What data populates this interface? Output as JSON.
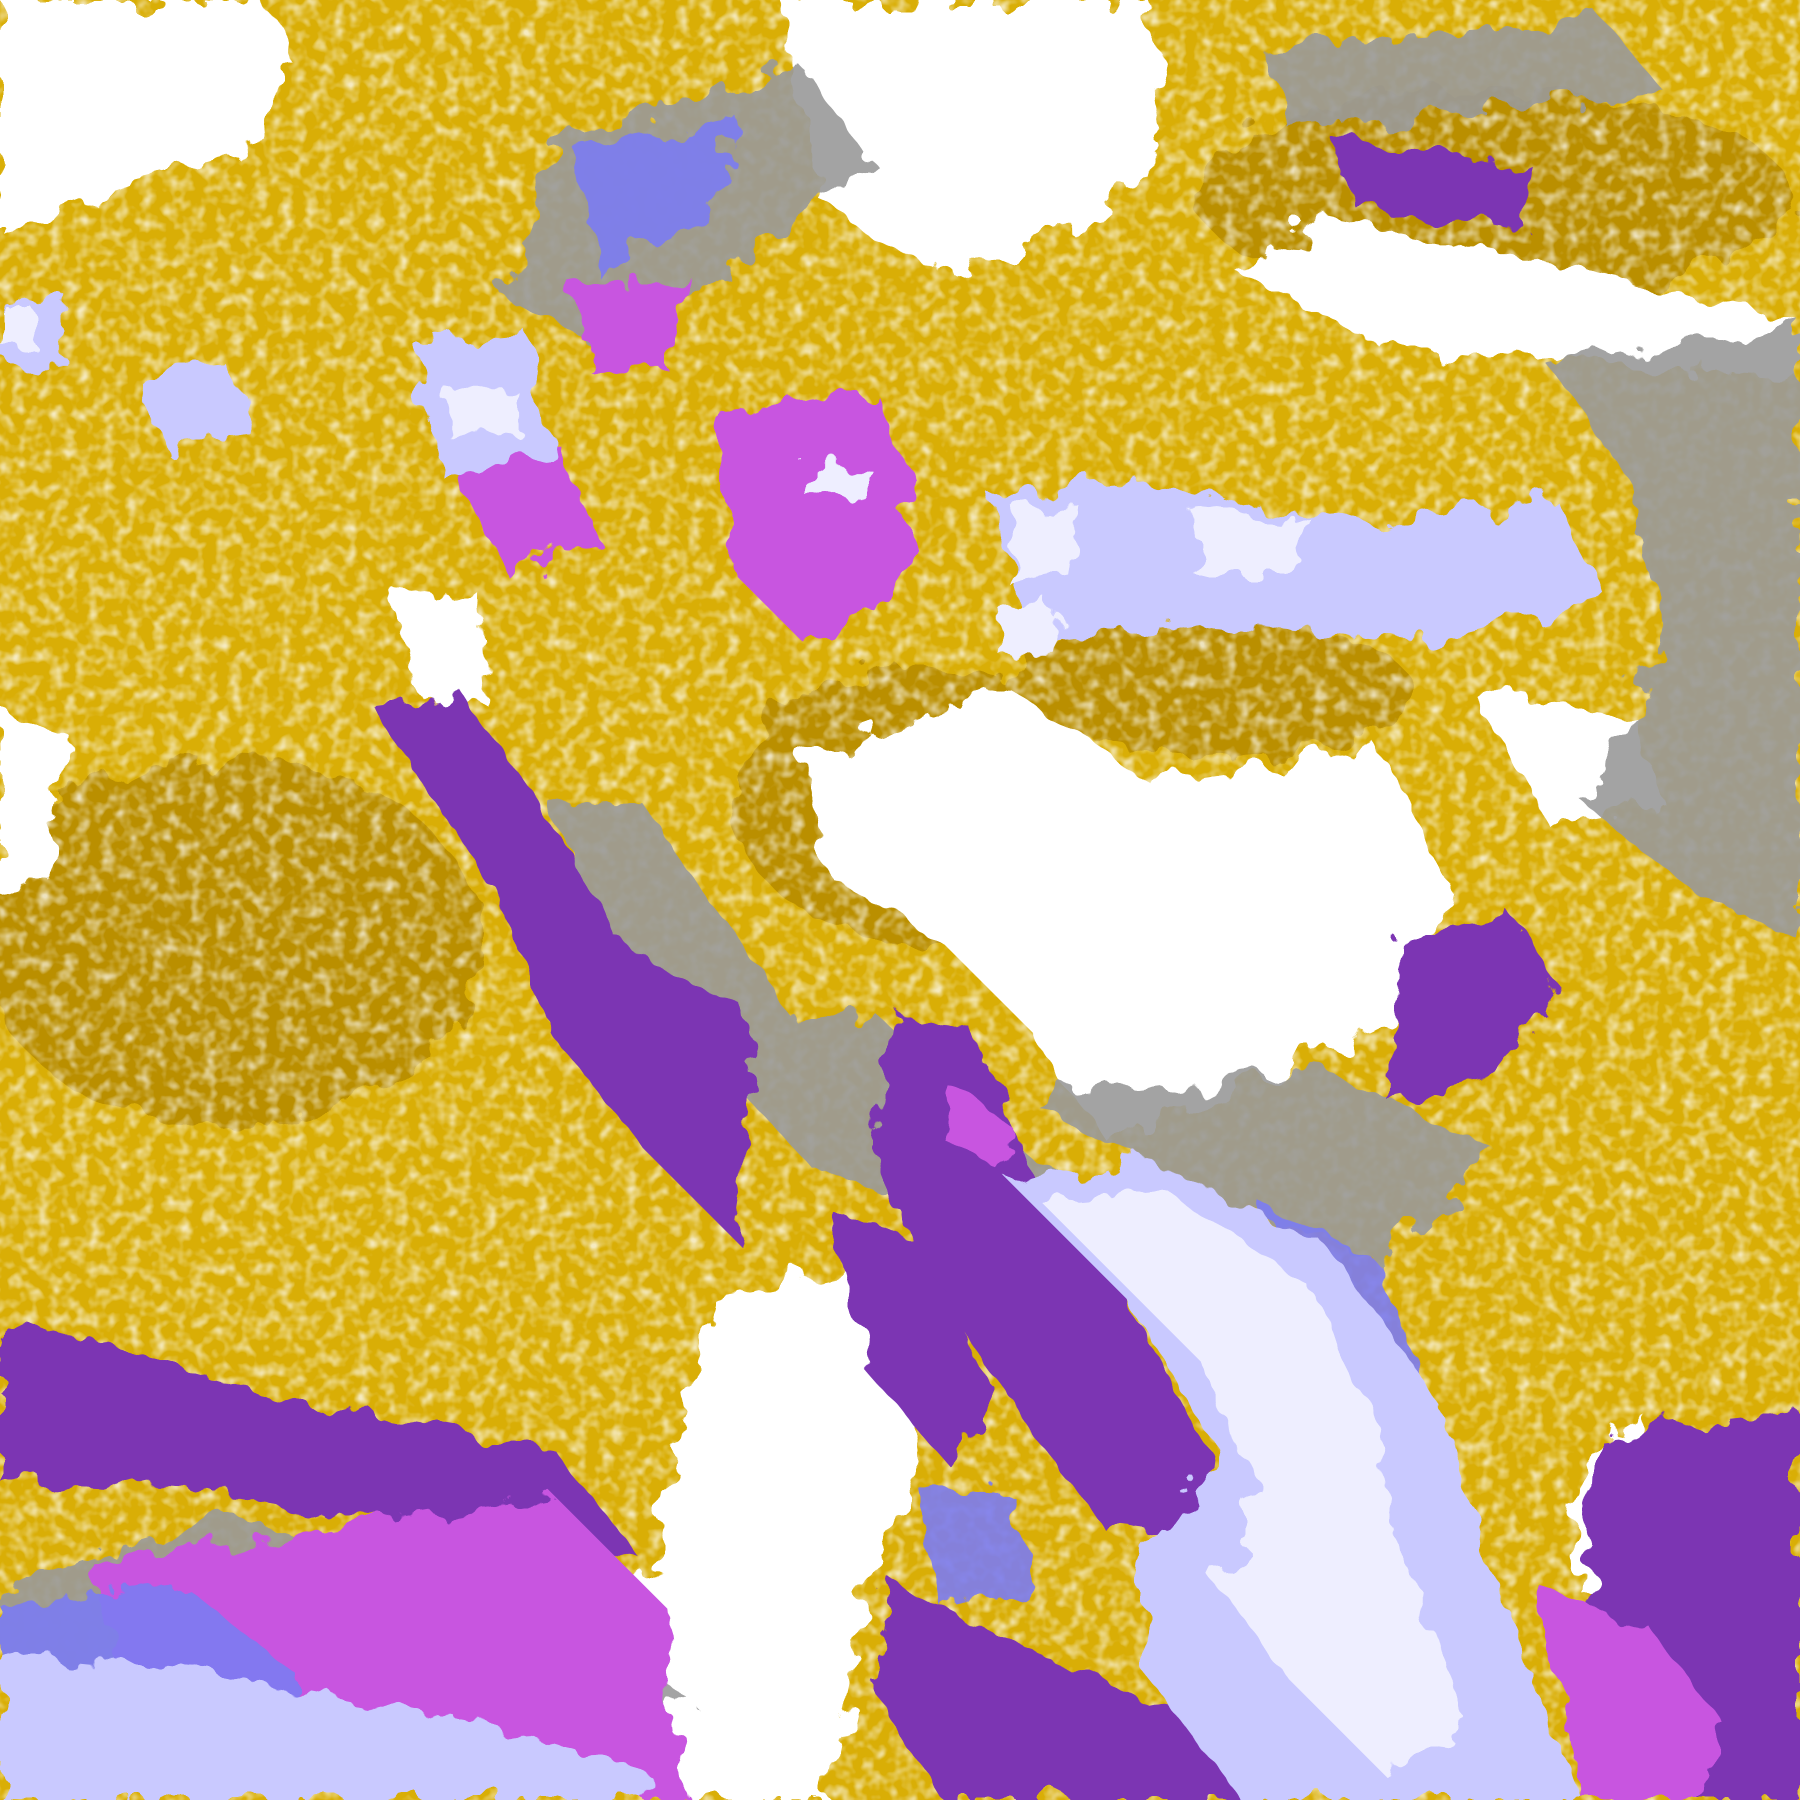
{
  "image": {
    "kind": "false-color classified satellite cloud imagery",
    "palette": {
      "clear": "#ffffff",
      "gold": "#d9ae06",
      "dark_gold": "#b58a00",
      "purple": "#7b35b3",
      "magenta": "#c855e0",
      "periwinkle": "#7b7bf2",
      "lavender": "#c9c9ff",
      "pale_lavender": "#eeeeff",
      "gray": "#9a9a9a"
    }
  }
}
